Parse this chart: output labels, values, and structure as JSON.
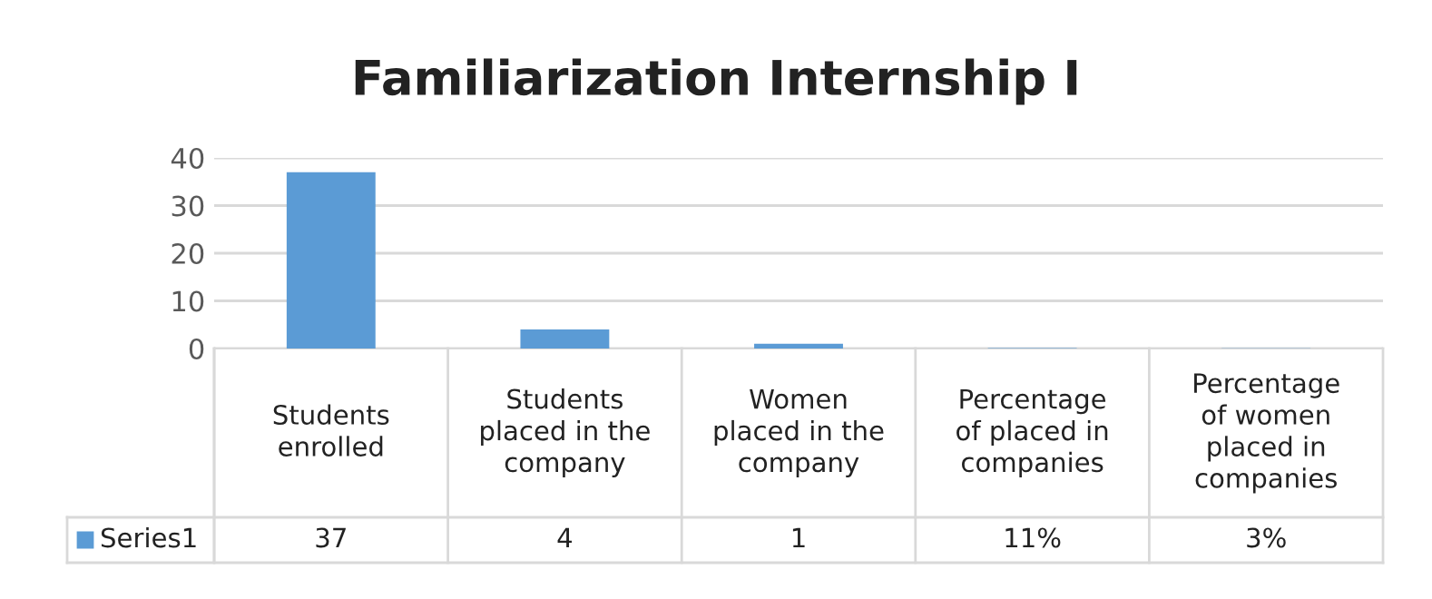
{
  "chart_data": {
    "type": "bar",
    "title": "Familiarization Internship I",
    "categories": [
      "Students enrolled",
      "Students placed in the company",
      "Women placed in the company",
      "Percentage of placed in companies",
      "Percentage of women placed in companies"
    ],
    "series": [
      {
        "name": "Series1",
        "color": "#5b9bd5",
        "values": [
          37,
          4,
          1,
          0.11,
          0.03
        ],
        "value_labels": [
          "37",
          "4",
          "1",
          "11%",
          "3%"
        ]
      }
    ],
    "ylim": [
      0,
      40
    ],
    "yticks": [
      0,
      10,
      20,
      30,
      40
    ],
    "grid": "y",
    "legend": "bottom"
  }
}
